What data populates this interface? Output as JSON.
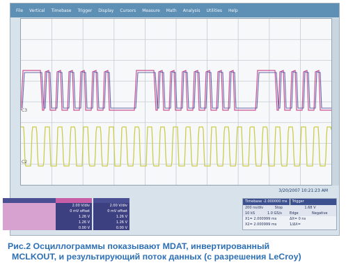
{
  "menu": [
    "File",
    "Vertical",
    "Timebase",
    "Trigger",
    "Display",
    "Cursors",
    "Measure",
    "Math",
    "Analysis",
    "Utilities",
    "Help"
  ],
  "channel_markers": {
    "c3": "C3",
    "c2": "C2"
  },
  "colors": {
    "mdat": "#c2337f",
    "mclk_inverted": "#4b4ea0",
    "mclkout": "#cccc4a",
    "caption": "#2c6fb5",
    "menubar": "#5e8fb5"
  },
  "panels": {
    "c1": {
      "lines": [
        "",
        "",
        "",
        "",
        ""
      ]
    },
    "c2": {
      "lines": [
        "2.00 V/div",
        "0 mV offset",
        "1.26 V",
        "1.26 V",
        "0.00 V"
      ]
    },
    "c3": {
      "lines": [
        "2.00 V/div",
        "0 mV offset",
        "1.26 V",
        "1.26 V",
        "0.00 V"
      ]
    }
  },
  "timebase": {
    "tab_timebase": "Timebase",
    "timebase_value": "-2.000000 ms",
    "tab_trigger": "Trigger",
    "row1": [
      "200 ns/div",
      "Stop",
      "1.68 V"
    ],
    "row2": [
      "10 kS",
      "1.0 GS/s",
      "Edge",
      "Negative"
    ]
  },
  "cursors": {
    "x1_label": "X1=",
    "x1_value": "2.000999 ms",
    "dx_label": "ΔX=",
    "dx_value": "0 ns",
    "x2_label": "X2=",
    "x2_value": "2.000999 ms",
    "idx_label": "1/ΔX=",
    "idx_value": ""
  },
  "datetime": "3/20/2007 10:21:23 AM",
  "caption": {
    "line1": "Рис.2 Осциллограммы показывают MDAT, инвертированный",
    "line2": "MCLKOUT, и результирующий поток данных (с разрешения LeCroy)"
  }
}
